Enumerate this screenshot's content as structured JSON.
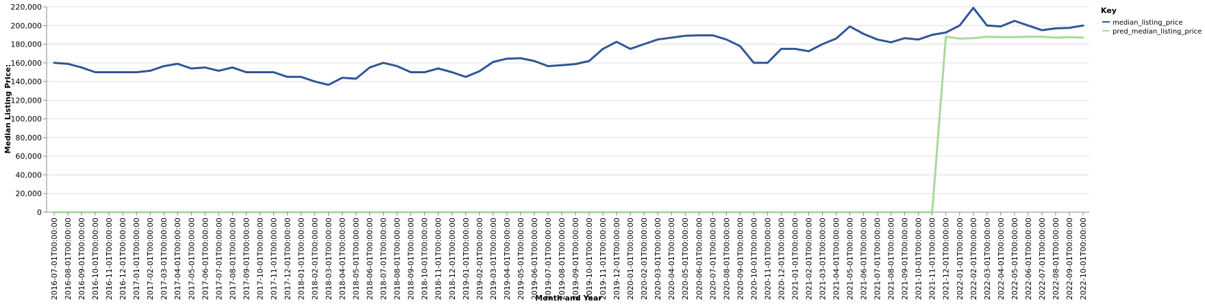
{
  "chart_data": {
    "type": "line",
    "xlabel": "Month and Year",
    "ylabel": "Median Listing Price:",
    "ylim": [
      0,
      220000
    ],
    "yticks": [
      0,
      20000,
      40000,
      60000,
      80000,
      100000,
      120000,
      140000,
      160000,
      180000,
      200000,
      220000
    ],
    "ytick_labels": [
      "0",
      "20,000",
      "40,000",
      "60,000",
      "80,000",
      "100,000",
      "120,000",
      "140,000",
      "160,000",
      "180,000",
      "200,000",
      "220,000"
    ],
    "grid": true,
    "legend": {
      "title": "Key",
      "placement": "right"
    },
    "categories": [
      "2016-07-01T00:00:00",
      "2016-08-01T00:00:00",
      "2016-09-01T00:00:00",
      "2016-10-01T00:00:00",
      "2016-11-01T00:00:00",
      "2016-12-01T00:00:00",
      "2017-01-01T00:00:00",
      "2017-02-01T00:00:00",
      "2017-03-01T00:00:00",
      "2017-04-01T00:00:00",
      "2017-05-01T00:00:00",
      "2017-06-01T00:00:00",
      "2017-07-01T00:00:00",
      "2017-08-01T00:00:00",
      "2017-09-01T00:00:00",
      "2017-10-01T00:00:00",
      "2017-11-01T00:00:00",
      "2017-12-01T00:00:00",
      "2018-01-01T00:00:00",
      "2018-02-01T00:00:00",
      "2018-03-01T00:00:00",
      "2018-04-01T00:00:00",
      "2018-05-01T00:00:00",
      "2018-06-01T00:00:00",
      "2018-07-01T00:00:00",
      "2018-08-01T00:00:00",
      "2018-09-01T00:00:00",
      "2018-10-01T00:00:00",
      "2018-11-01T00:00:00",
      "2018-12-01T00:00:00",
      "2019-01-01T00:00:00",
      "2019-02-01T00:00:00",
      "2019-03-01T00:00:00",
      "2019-04-01T00:00:00",
      "2019-05-01T00:00:00",
      "2019-06-01T00:00:00",
      "2019-07-01T00:00:00",
      "2019-08-01T00:00:00",
      "2019-09-01T00:00:00",
      "2019-10-01T00:00:00",
      "2019-11-01T00:00:00",
      "2019-12-01T00:00:00",
      "2020-01-01T00:00:00",
      "2020-02-01T00:00:00",
      "2020-03-01T00:00:00",
      "2020-04-01T00:00:00",
      "2020-05-01T00:00:00",
      "2020-06-01T00:00:00",
      "2020-07-01T00:00:00",
      "2020-08-01T00:00:00",
      "2020-09-01T00:00:00",
      "2020-10-01T00:00:00",
      "2020-11-01T00:00:00",
      "2020-12-01T00:00:00",
      "2021-01-01T00:00:00",
      "2021-02-01T00:00:00",
      "2021-03-01T00:00:00",
      "2021-04-01T00:00:00",
      "2021-05-01T00:00:00",
      "2021-06-01T00:00:00",
      "2021-07-01T00:00:00",
      "2021-08-01T00:00:00",
      "2021-09-01T00:00:00",
      "2021-10-01T00:00:00",
      "2021-11-01T00:00:00",
      "2021-12-01T00:00:00",
      "2022-01-01T00:00:00",
      "2022-02-01T00:00:00",
      "2022-03-01T00:00:00",
      "2022-04-01T00:00:00",
      "2022-05-01T00:00:00",
      "2022-06-01T00:00:00",
      "2022-07-01T00:00:00",
      "2022-08-01T00:00:00",
      "2022-09-01T00:00:00",
      "2022-10-01T00:00:00"
    ],
    "series": [
      {
        "name": "median_listing_price",
        "color": "#2f5597",
        "values": [
          160000,
          159000,
          155000,
          150000,
          150000,
          150000,
          150000,
          151500,
          156500,
          159000,
          154000,
          155000,
          151500,
          155000,
          150000,
          150000,
          150000,
          145000,
          145000,
          140000,
          136500,
          144000,
          143000,
          155000,
          160000,
          156500,
          150000,
          150000,
          154000,
          150000,
          145000,
          151000,
          161000,
          164500,
          165000,
          162000,
          156500,
          157500,
          158700,
          162000,
          175000,
          182500,
          175000,
          180000,
          185000,
          187000,
          189000,
          189500,
          189500,
          185000,
          178000,
          160000,
          160000,
          175000,
          175000,
          172500,
          180000,
          186000,
          199000,
          191000,
          185000,
          182000,
          186500,
          185000,
          190000,
          192500,
          200000,
          219000,
          200000,
          199000,
          205000,
          200000,
          195000,
          197000,
          197500,
          200000
        ]
      },
      {
        "name": "pred_median_listing_price",
        "color": "#a6d99a",
        "values": [
          0,
          0,
          0,
          0,
          0,
          0,
          0,
          0,
          0,
          0,
          0,
          0,
          0,
          0,
          0,
          0,
          0,
          0,
          0,
          0,
          0,
          0,
          0,
          0,
          0,
          0,
          0,
          0,
          0,
          0,
          0,
          0,
          0,
          0,
          0,
          0,
          0,
          0,
          0,
          0,
          0,
          0,
          0,
          0,
          0,
          0,
          0,
          0,
          0,
          0,
          0,
          0,
          0,
          0,
          0,
          0,
          0,
          0,
          0,
          0,
          0,
          0,
          0,
          0,
          0,
          188000,
          186000,
          186500,
          188000,
          187500,
          187500,
          188000,
          188000,
          187000,
          187500,
          187000
        ]
      }
    ]
  }
}
